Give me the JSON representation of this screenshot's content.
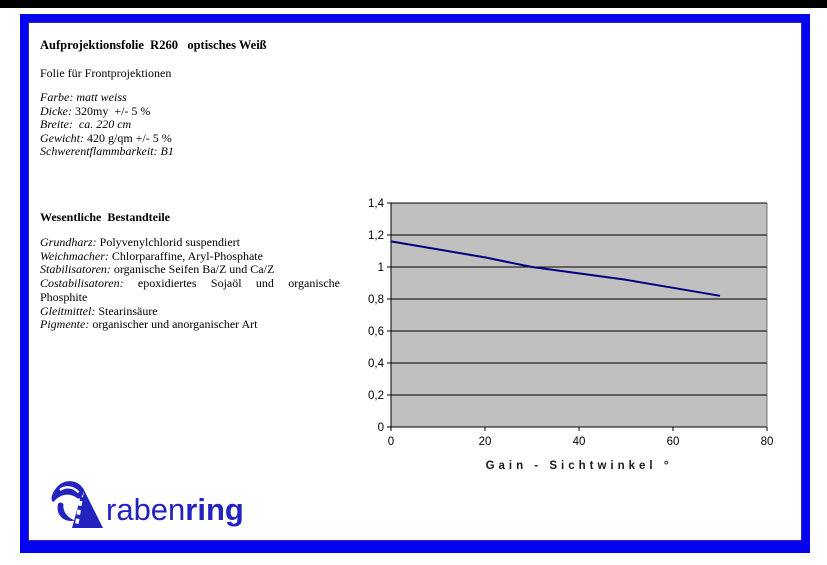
{
  "document": {
    "title": "Aufprojektionsfolie  R260   optisches Weiß",
    "subtitle": "Folie für Frontprojektionen",
    "specs": [
      {
        "label": "Farbe:",
        "value": "matt weiss"
      },
      {
        "label": "Dicke:",
        "value": "320my  +/- 5 %"
      },
      {
        "label": "Breite:",
        "value": " ca. 220 cm"
      },
      {
        "label": "Gewicht:",
        "value": "420 g/qm +/- 5 %"
      },
      {
        "label": "Schwerentflammbarkeit:",
        "value": "B1"
      }
    ],
    "components_heading": "Wesentliche  Bestandteile",
    "components": [
      {
        "label": "Grundharz:",
        "value": "Polyvenylchlorid suspendiert"
      },
      {
        "label": "Weichmacher:",
        "value": "Chlorparaffine, Aryl-Phosphate"
      },
      {
        "label": "Stabilisatoren:",
        "value": "organische Seifen Ba/Z und Ca/Z"
      },
      {
        "label": "Costabilisatoren:",
        "value": "epoxidiertes Sojaöl und organische Phosphite"
      },
      {
        "label": "Gleitmittel:",
        "value": "Stearinsäure"
      },
      {
        "label": "Pigmente:",
        "value": "organischer und anorganischer Art"
      }
    ]
  },
  "chart_data": {
    "type": "line",
    "title": "",
    "xlabel": "Gain - Sichtwinkel °",
    "ylabel": "",
    "xlim": [
      0,
      80
    ],
    "ylim": [
      0,
      1.4
    ],
    "x_tick_values": [
      0,
      20,
      40,
      60,
      80
    ],
    "x_tick_labels": [
      "0",
      "20",
      "40",
      "60",
      "80"
    ],
    "y_tick_values": [
      0,
      0.2,
      0.4,
      0.6,
      0.8,
      1,
      1.2,
      1.4
    ],
    "y_tick_labels": [
      "0",
      "0,2",
      "0,4",
      "0,6",
      "0,8",
      "1",
      "1,2",
      "1,4"
    ],
    "grid": "horizontal",
    "legend": "none",
    "plot_bg": "#c0c0c0",
    "grid_color": "#000000",
    "line_color": "#000080",
    "series": [
      {
        "name": "Gain",
        "x": [
          0,
          10,
          20,
          30,
          40,
          50,
          60,
          70
        ],
        "y": [
          1.16,
          1.11,
          1.06,
          1.0,
          0.96,
          0.92,
          0.87,
          0.82
        ]
      }
    ]
  },
  "logo": {
    "text_regular": "raben",
    "text_bold": "ring",
    "color": "#2323c0"
  },
  "colors": {
    "frame": "#0404ee",
    "top_bar": "#000000"
  }
}
